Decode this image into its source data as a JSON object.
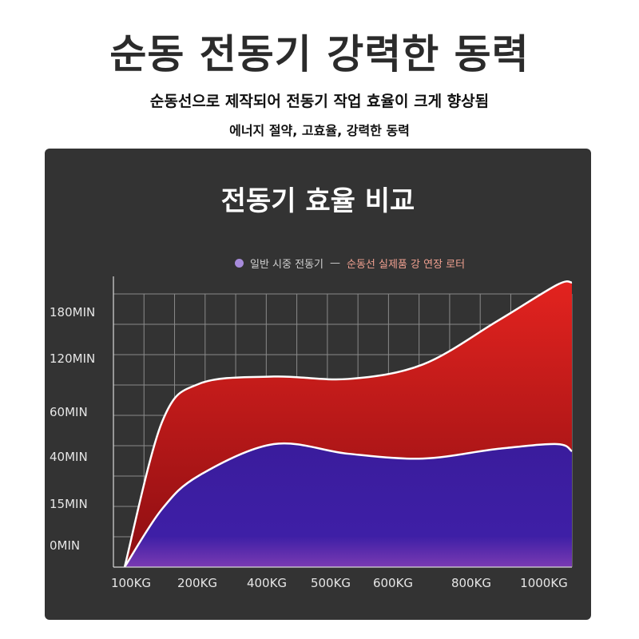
{
  "header": {
    "title": "순동 전동기 강력한 동력",
    "subtitle1": "순동선으로 제작되어 전동기 작업 효율이 크게 향상됨",
    "subtitle2": "에너지 절약, 고효율, 강력한 동력"
  },
  "colors": {
    "card_background": "#333333",
    "grid": "#8a8a8a",
    "series_red": "#d31f1f",
    "series_blue": "#3a1fa0",
    "curve_stroke": "#ffffff",
    "legend_dot": "#a78bdb"
  },
  "chart_data": {
    "type": "area",
    "title": "전동기 효율 비교",
    "categories": [
      "100KG",
      "200KG",
      "400KG",
      "500KG",
      "600KG",
      "800KG",
      "1000KG"
    ],
    "y_ticks": [
      "0MIN",
      "15MIN",
      "40MIN",
      "60MIN",
      "120MIN",
      "180MIN"
    ],
    "legend": {
      "series_a_label": "일반 시중 전동기",
      "separator": "—",
      "series_b_label": "순동선 실제품 강 연장 로터"
    },
    "series": [
      {
        "name": "순동선 실제품 강 연장 로터",
        "color": "#d31f1f",
        "points": [
          [
            0.0,
            0.0
          ],
          [
            0.5,
            3.0
          ],
          [
            1.0,
            3.8
          ],
          [
            2.0,
            3.95
          ],
          [
            3.0,
            3.9
          ],
          [
            4.0,
            4.2
          ],
          [
            5.0,
            5.1
          ],
          [
            5.8,
            5.85
          ],
          [
            6.0,
            5.9
          ]
        ]
      },
      {
        "name": "일반 시중 전동기",
        "color": "#3a1fa0",
        "points": [
          [
            0.0,
            0.0
          ],
          [
            0.5,
            1.2
          ],
          [
            1.0,
            1.9
          ],
          [
            2.0,
            2.55
          ],
          [
            3.0,
            2.35
          ],
          [
            4.0,
            2.25
          ],
          [
            5.0,
            2.45
          ],
          [
            5.8,
            2.55
          ],
          [
            6.0,
            2.4
          ]
        ]
      }
    ],
    "grid": true,
    "legend_position": "top"
  }
}
